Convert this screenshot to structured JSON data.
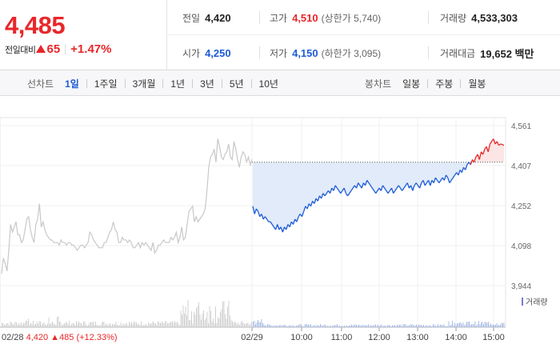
{
  "summary": {
    "price": "4,485",
    "change_label": "전일대비",
    "change_value": "65",
    "change_pct": "+1.47%"
  },
  "stats": {
    "prev_close": {
      "label": "전일",
      "value": "4,420"
    },
    "high": {
      "label": "고가",
      "value": "4,510",
      "sub": "(상한가 5,740)"
    },
    "volume": {
      "label": "거래량",
      "value": "4,533,303"
    },
    "open": {
      "label": "시가",
      "value": "4,250"
    },
    "low": {
      "label": "저가",
      "value": "4,150",
      "sub": "(하한가 3,095)"
    },
    "trade_value": {
      "label": "거래대금",
      "value": "19,652 백만"
    }
  },
  "tabs": {
    "line_title": "선차트",
    "line": [
      "1일",
      "1주일",
      "3개월",
      "1년",
      "3년",
      "5년",
      "10년"
    ],
    "line_active": 0,
    "candle_title": "봉차트",
    "candle": [
      "일봉",
      "주봉",
      "월봉"
    ]
  },
  "chart_data": {
    "type": "line",
    "y_ticks": [
      "4,561",
      "4,407",
      "4,252",
      "4,098",
      "3,944"
    ],
    "ylim": [
      3944,
      4561
    ],
    "reference_price": 4420,
    "x_ticks": [
      "02/29",
      "10:00",
      "11:00",
      "12:00",
      "13:00",
      "14:00",
      "15:00"
    ],
    "prev_day_label": "02/28",
    "prev_day_close": "4,420",
    "prev_day_change": "485",
    "prev_day_pct": "(+12.33%)",
    "volume_legend": "거래량",
    "colors": {
      "up": "#e8272a",
      "down": "#1d5bd6",
      "prev": "#c8c8c8",
      "fill_down": "#dce8f8",
      "fill_up": "#fbe2e2"
    },
    "prev_day_series": [
      3990,
      4050,
      4030,
      4000,
      4080,
      4180,
      4150,
      4170,
      4190,
      4140,
      4140,
      4110,
      4120,
      4160,
      4200,
      4210,
      4160,
      4130,
      4110,
      4180,
      4200,
      4260,
      4170,
      4190,
      4160,
      4140,
      4130,
      4120,
      4120,
      4110,
      4110,
      4110,
      4100,
      4120,
      4110,
      4110,
      4100,
      4110,
      4110,
      4100,
      4100,
      4090,
      4080,
      4090,
      4100,
      4100,
      4090,
      4100,
      4110,
      4150,
      4140,
      4120,
      4110,
      4100,
      4090,
      4090,
      4090,
      4110,
      4110,
      4130,
      4150,
      4160,
      4190,
      4160,
      4150,
      4110,
      4110,
      4130,
      4120,
      4120,
      4110,
      4120,
      4110,
      4090,
      4090,
      4100,
      4110,
      4090,
      4110,
      4100,
      4110,
      4100,
      4090,
      4080,
      4110,
      4070,
      4080,
      4100,
      4100,
      4110,
      4120,
      4110,
      4110,
      4110,
      4130,
      4120,
      4130,
      4150,
      4110,
      4130,
      4170,
      4120,
      4130,
      4180,
      4230,
      4240,
      4250,
      4190,
      4210,
      4190,
      4200,
      4210,
      4220,
      4240,
      4310,
      4400,
      4440,
      4450,
      4470,
      4420,
      4510,
      4480,
      4440,
      4430,
      4450,
      4460,
      4490,
      4440,
      4430,
      4500,
      4470,
      4430,
      4400,
      4440,
      4460,
      4450,
      4420,
      4440,
      4410,
      4430
    ],
    "today_series": [
      4250,
      4220,
      4240,
      4230,
      4210,
      4220,
      4200,
      4210,
      4200,
      4190,
      4190,
      4180,
      4170,
      4160,
      4180,
      4160,
      4170,
      4150,
      4170,
      4160,
      4180,
      4170,
      4190,
      4180,
      4200,
      4190,
      4210,
      4220,
      4210,
      4230,
      4250,
      4240,
      4260,
      4250,
      4270,
      4260,
      4280,
      4270,
      4290,
      4280,
      4300,
      4290,
      4300,
      4310,
      4300,
      4320,
      4310,
      4330,
      4320,
      4310,
      4300,
      4310,
      4320,
      4300,
      4290,
      4300,
      4310,
      4320,
      4330,
      4320,
      4340,
      4330,
      4320,
      4340,
      4330,
      4350,
      4340,
      4330,
      4320,
      4310,
      4300,
      4310,
      4320,
      4310,
      4330,
      4320,
      4310,
      4300,
      4310,
      4320,
      4300,
      4310,
      4320,
      4330,
      4320,
      4310,
      4320,
      4330,
      4340,
      4320,
      4330,
      4310,
      4330,
      4340,
      4330,
      4320,
      4340,
      4350,
      4330,
      4340,
      4350,
      4330,
      4350,
      4340,
      4360,
      4350,
      4340,
      4350,
      4360,
      4350,
      4370,
      4360,
      4340,
      4350,
      4360,
      4370,
      4380,
      4370,
      4390,
      4380,
      4400,
      4390,
      4410,
      4420,
      4410,
      4430,
      4420,
      4440,
      4450,
      4430,
      4460,
      4450,
      4470,
      4480,
      4460,
      4490,
      4500,
      4510,
      4490,
      4500,
      4485,
      4490,
      4488,
      4485
    ]
  }
}
